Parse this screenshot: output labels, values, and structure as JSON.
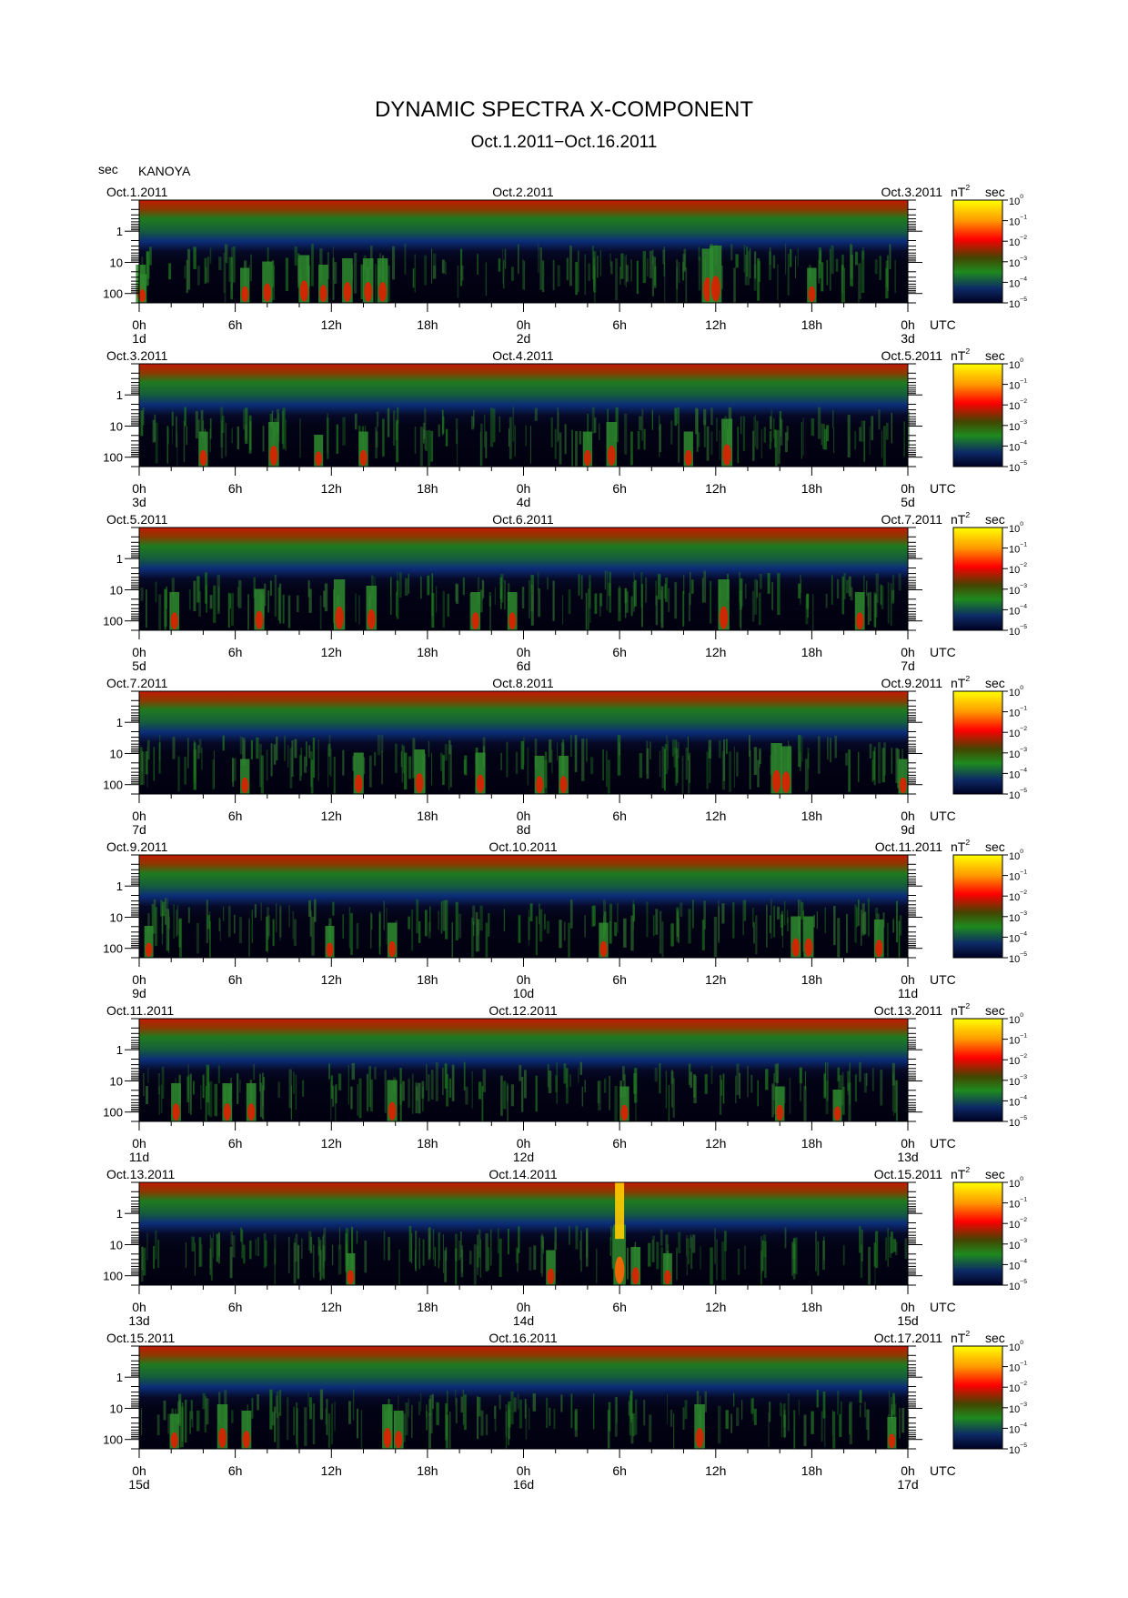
{
  "title": "DYNAMIC SPECTRA X-COMPONENT",
  "subtitle": "Oct.1.2011−Oct.16.2011",
  "y_unit_label": "sec",
  "station": "KANOYA",
  "x_unit": "UTC",
  "colorbar_label": {
    "base": "nT",
    "exp": "2",
    "unit": "sec"
  },
  "colorbar_ticks": [
    {
      "base": "10",
      "exp": "0"
    },
    {
      "base": "10",
      "exp": "−1"
    },
    {
      "base": "10",
      "exp": "−2"
    },
    {
      "base": "10",
      "exp": "−3"
    },
    {
      "base": "10",
      "exp": "−4"
    },
    {
      "base": "10",
      "exp": "−5"
    }
  ],
  "colors": {
    "high": "#ffff00",
    "mid_high": "#ff0000",
    "mid": "#228b22",
    "low": "#000033"
  },
  "chart_data": {
    "type": "heatmap",
    "y_axis": {
      "scale": "log",
      "ticks": [
        "1",
        "10",
        "100"
      ],
      "range_sec": [
        0.1,
        200
      ]
    },
    "x_tick_labels": [
      "0h",
      "6h",
      "12h",
      "18h",
      "0h",
      "6h",
      "12h",
      "18h",
      "0h"
    ],
    "colorbar": {
      "scale": "log",
      "range": [
        1e-05,
        1
      ]
    },
    "panels": [
      {
        "start_date": "Oct.1.2011",
        "mid_date": "Oct.2.2011",
        "end_date": "Oct.3.2011",
        "day_labels": [
          "1d",
          "2d",
          "3d"
        ],
        "events": [
          [
            0.1,
            0.6
          ],
          [
            0.2,
            0.45
          ],
          [
            6.6,
            0.55
          ],
          [
            8.0,
            0.65
          ],
          [
            10.3,
            0.75
          ],
          [
            11.5,
            0.6
          ],
          [
            13.0,
            0.7
          ],
          [
            14.3,
            0.7
          ],
          [
            15.2,
            0.7
          ],
          [
            35.5,
            0.85
          ],
          [
            36.0,
            0.9
          ],
          [
            42.0,
            0.55
          ]
        ]
      },
      {
        "start_date": "Oct.3.2011",
        "mid_date": "Oct.4.2011",
        "end_date": "Oct.5.2011",
        "day_labels": [
          "3d",
          "4d",
          "5d"
        ],
        "events": [
          [
            4.0,
            0.55
          ],
          [
            8.4,
            0.7
          ],
          [
            11.2,
            0.5
          ],
          [
            14.0,
            0.55
          ],
          [
            28.0,
            0.55
          ],
          [
            29.5,
            0.7
          ],
          [
            34.3,
            0.55
          ],
          [
            36.7,
            0.75
          ]
        ]
      },
      {
        "start_date": "Oct.5.2011",
        "mid_date": "Oct.6.2011",
        "end_date": "Oct.7.2011",
        "day_labels": [
          "5d",
          "6d",
          "7d"
        ],
        "events": [
          [
            2.2,
            0.6
          ],
          [
            7.5,
            0.65
          ],
          [
            12.5,
            0.8
          ],
          [
            14.5,
            0.7
          ],
          [
            21.0,
            0.6
          ],
          [
            23.3,
            0.6
          ],
          [
            36.5,
            0.8
          ],
          [
            45.0,
            0.6
          ]
        ]
      },
      {
        "start_date": "Oct.7.2011",
        "mid_date": "Oct.8.2011",
        "end_date": "Oct.9.2011",
        "day_labels": [
          "7d",
          "8d",
          "9d"
        ],
        "events": [
          [
            6.6,
            0.55
          ],
          [
            13.7,
            0.65
          ],
          [
            17.5,
            0.7
          ],
          [
            21.3,
            0.65
          ],
          [
            25.0,
            0.6
          ],
          [
            26.5,
            0.6
          ],
          [
            39.8,
            0.8
          ],
          [
            40.4,
            0.75
          ],
          [
            47.7,
            0.55
          ]
        ]
      },
      {
        "start_date": "Oct.9.2011",
        "mid_date": "Oct.10.2011",
        "end_date": "Oct.11.2011",
        "day_labels": [
          "9d",
          "10d",
          "11d"
        ],
        "events": [
          [
            0.6,
            0.5
          ],
          [
            11.9,
            0.5
          ],
          [
            15.8,
            0.55
          ],
          [
            29.0,
            0.55
          ],
          [
            41.0,
            0.65
          ],
          [
            41.8,
            0.65
          ],
          [
            46.2,
            0.6
          ]
        ]
      },
      {
        "start_date": "Oct.11.2011",
        "mid_date": "Oct.12.2011",
        "end_date": "Oct.13.2011",
        "day_labels": [
          "11d",
          "12d",
          "13d"
        ],
        "events": [
          [
            2.3,
            0.6
          ],
          [
            5.5,
            0.6
          ],
          [
            7.0,
            0.6
          ],
          [
            15.8,
            0.65
          ],
          [
            30.3,
            0.55
          ],
          [
            40.0,
            0.55
          ],
          [
            43.6,
            0.5
          ]
        ]
      },
      {
        "start_date": "Oct.13.2011",
        "mid_date": "Oct.14.2011",
        "end_date": "Oct.15.2011",
        "day_labels": [
          "13d",
          "14d",
          "15d"
        ],
        "events": [
          [
            13.2,
            0.5
          ],
          [
            25.7,
            0.55
          ],
          [
            30.0,
            0.95
          ],
          [
            31.0,
            0.6
          ],
          [
            33.0,
            0.5
          ]
        ]
      },
      {
        "start_date": "Oct.15.2011",
        "mid_date": "Oct.16.2011",
        "end_date": "Oct.17.2011",
        "day_labels": [
          "15d",
          "16d",
          "17d"
        ],
        "events": [
          [
            2.2,
            0.55
          ],
          [
            5.2,
            0.7
          ],
          [
            6.7,
            0.6
          ],
          [
            15.5,
            0.7
          ],
          [
            16.2,
            0.6
          ],
          [
            35.0,
            0.7
          ],
          [
            47.0,
            0.5
          ]
        ]
      }
    ]
  }
}
